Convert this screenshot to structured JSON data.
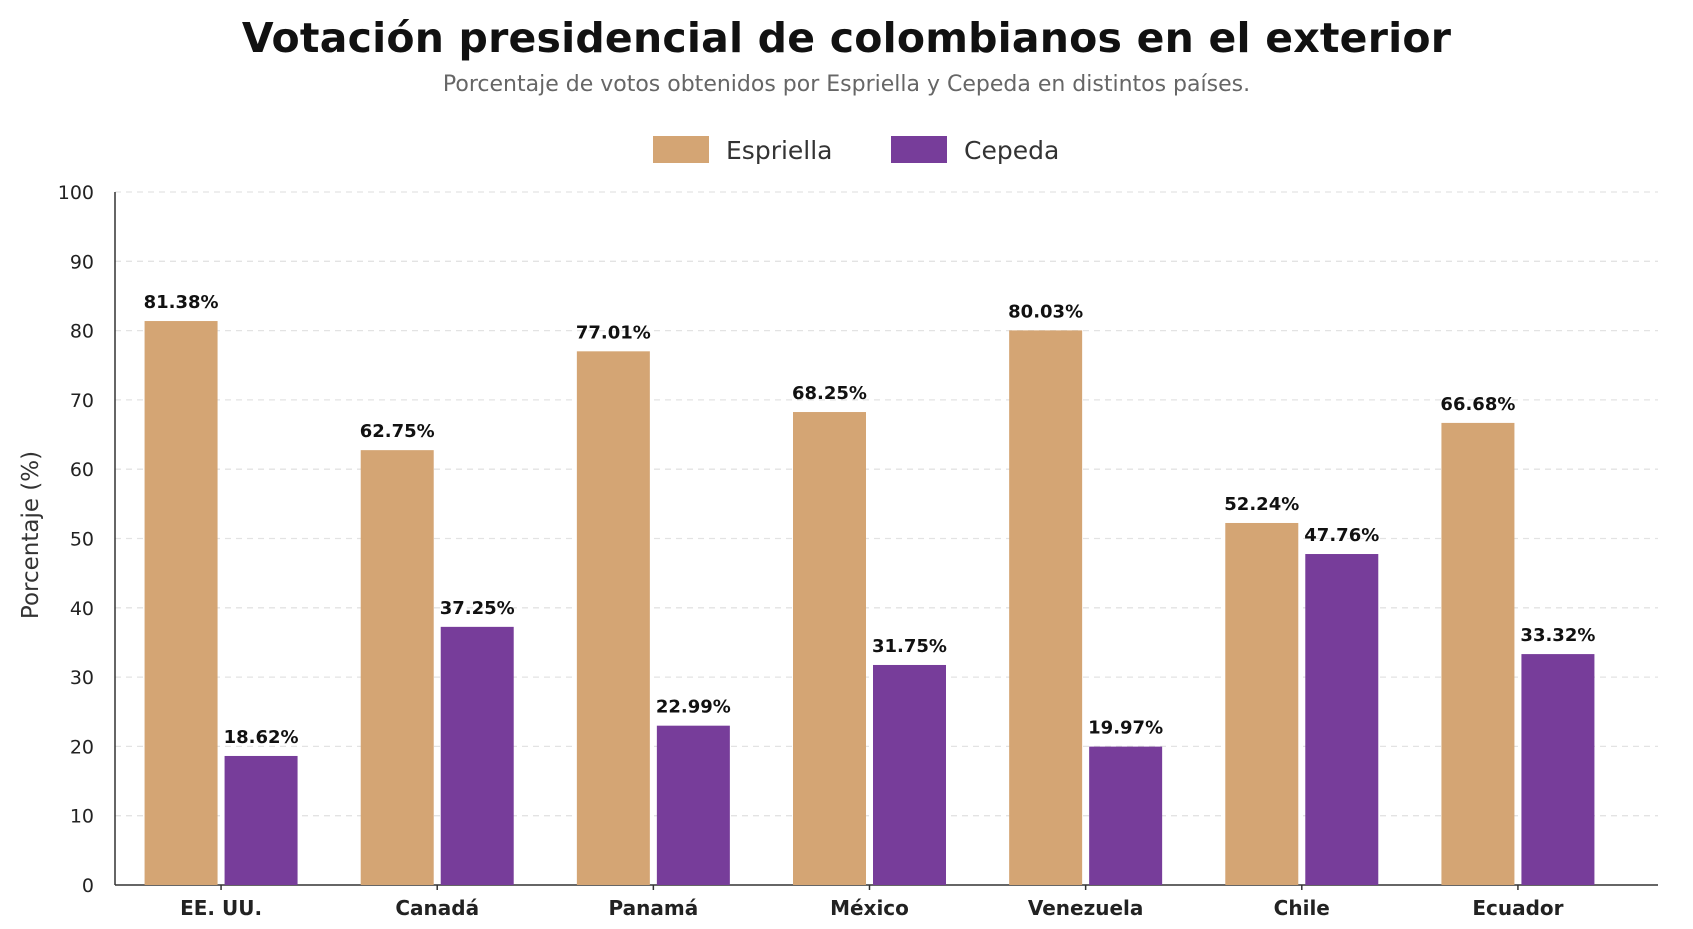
{
  "chart_data": {
    "type": "bar",
    "title": "Votación presidencial de colombianos en el exterior",
    "subtitle": "Porcentaje de votos obtenidos por Espriella y Cepeda en distintos países.",
    "xlabel": "",
    "ylabel": "Porcentaje (%)",
    "ylim": [
      0,
      100
    ],
    "yticks": [
      "0",
      "10",
      "20",
      "30",
      "40",
      "50",
      "60",
      "70",
      "80",
      "90",
      "100"
    ],
    "grid": "horizontal dashed",
    "legend_position": "top-center",
    "categories": [
      "EE. UU.",
      "Canadá",
      "Panamá",
      "México",
      "Venezuela",
      "Chile",
      "Ecuador"
    ],
    "series": [
      {
        "name": "Espriella",
        "color": "#D4A574",
        "values": [
          81.38,
          62.75,
          77.01,
          68.25,
          80.03,
          52.24,
          66.68
        ],
        "labels": [
          "81.38%",
          "62.75%",
          "77.01%",
          "68.25%",
          "80.03%",
          "52.24%",
          "66.68%"
        ]
      },
      {
        "name": "Cepeda",
        "color": "#773D9A",
        "values": [
          18.62,
          37.25,
          22.99,
          31.75,
          19.97,
          47.76,
          33.32
        ],
        "labels": [
          "18.62%",
          "37.25%",
          "22.99%",
          "31.75%",
          "19.97%",
          "47.76%",
          "33.32%"
        ]
      }
    ]
  }
}
